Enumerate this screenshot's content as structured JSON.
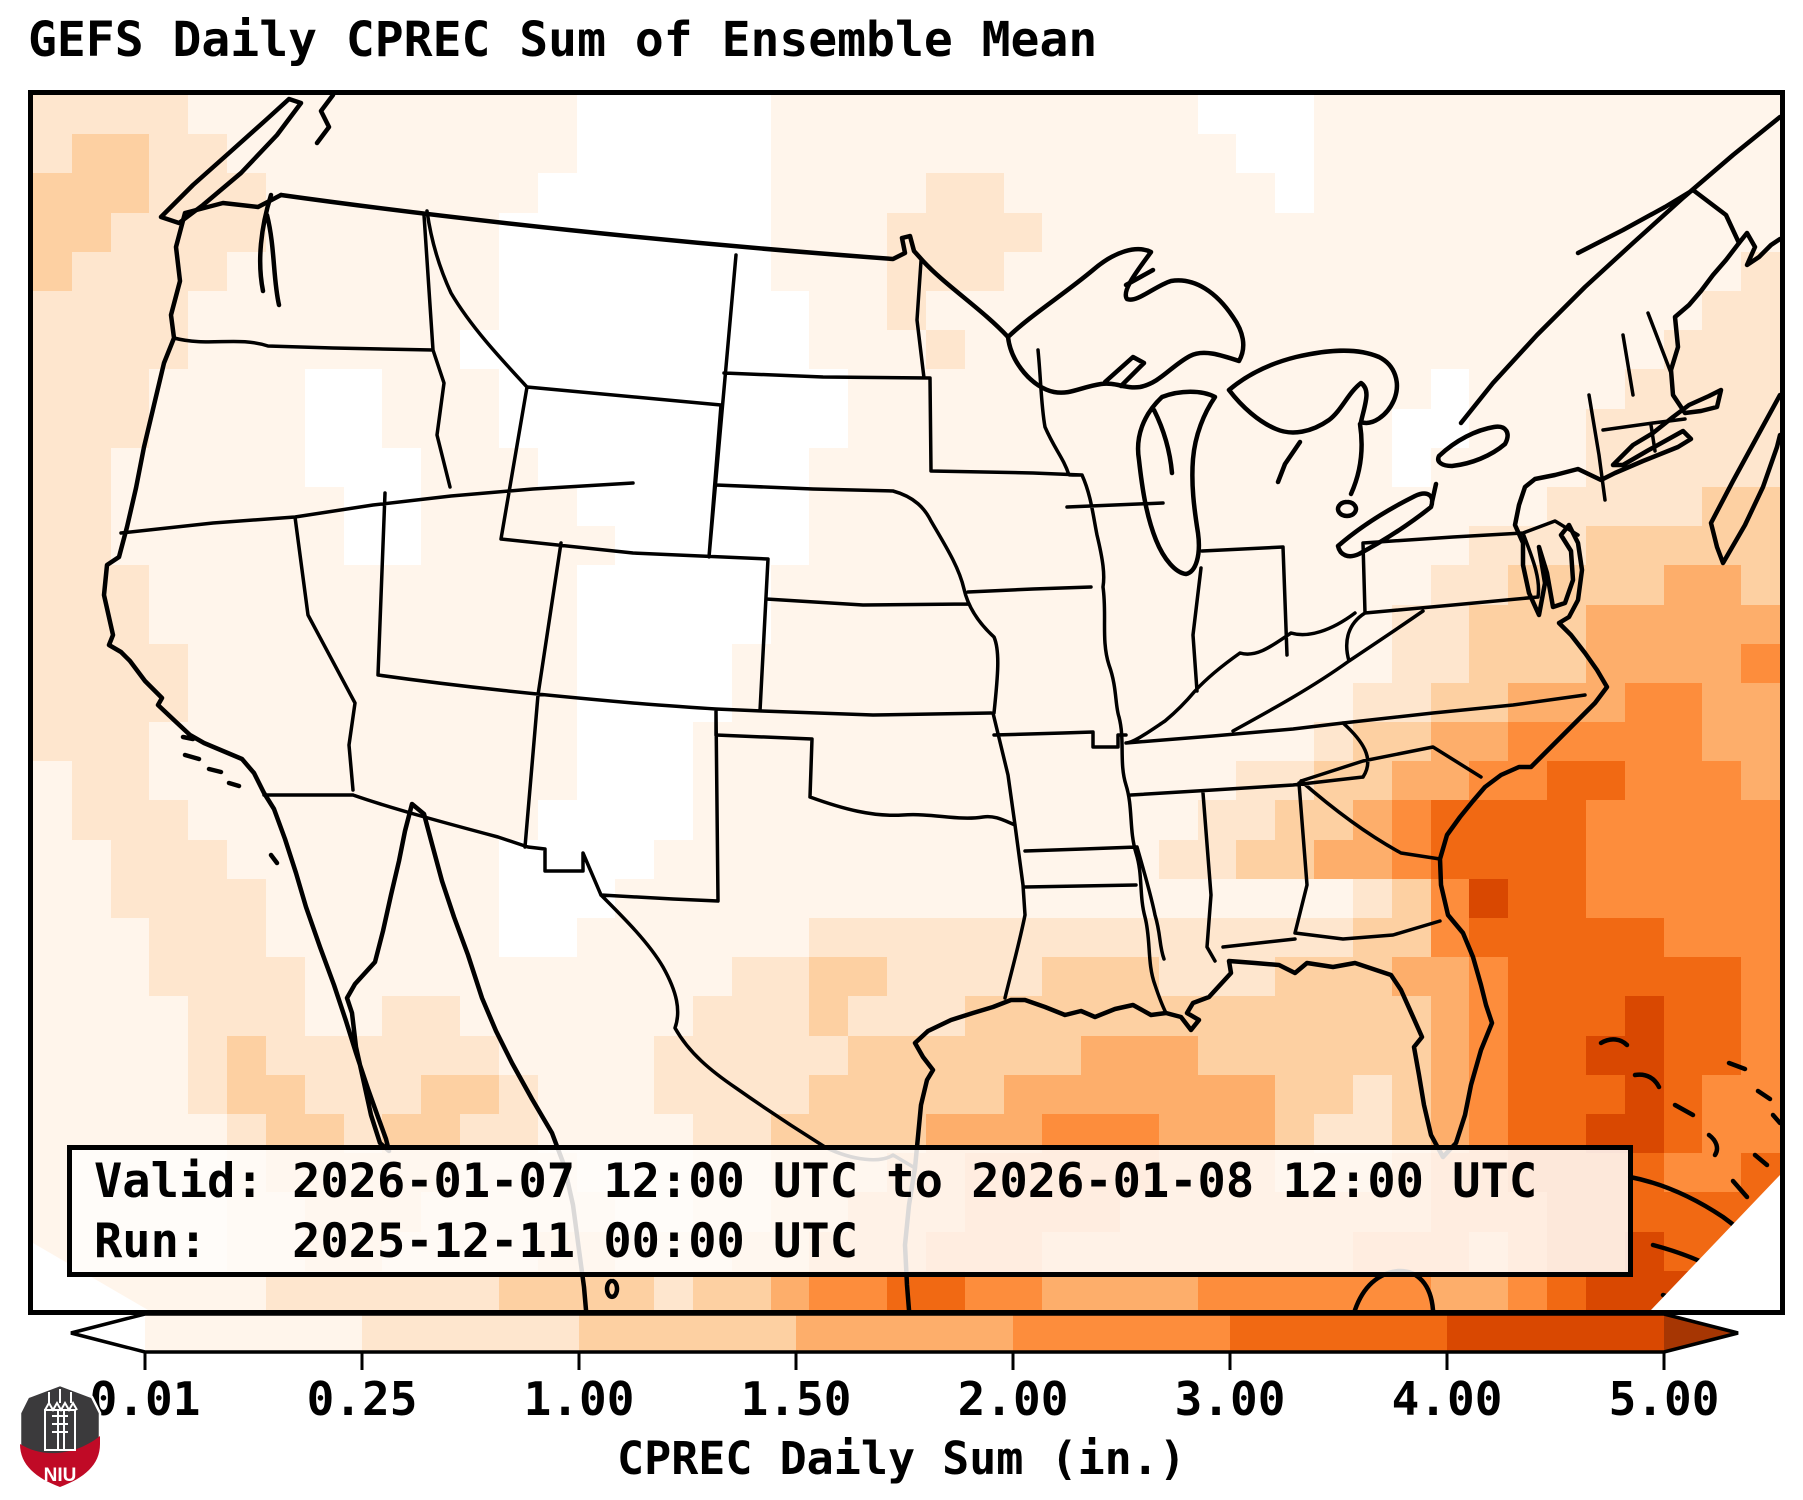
{
  "title": "GEFS Daily CPREC Sum of Ensemble Mean",
  "info_box": {
    "line1": "Valid: 2026-01-07 12:00 UTC to 2026-01-08 12:00 UTC",
    "line2": "Run:   2025-12-11 00:00 UTC",
    "valid_label": "Valid:",
    "valid_value": "2026-01-07 12:00 UTC to 2026-01-08 12:00 UTC",
    "run_label": "Run:",
    "run_value": "2025-12-11 00:00 UTC"
  },
  "colorbar": {
    "label": "CPREC Daily Sum (in.)",
    "tick_labels": [
      "0.01",
      "0.25",
      "1.00",
      "1.50",
      "2.00",
      "3.00",
      "4.00",
      "5.00"
    ],
    "boundaries": [
      0.01,
      0.25,
      1.0,
      1.5,
      2.0,
      3.0,
      4.0,
      5.0
    ],
    "segment_colors": [
      "#fff5eb",
      "#fee6ce",
      "#fdd0a2",
      "#fdae6b",
      "#fd8d3c",
      "#f16913",
      "#d94801"
    ],
    "under_color": "#ffffff",
    "over_color": "#a63603",
    "outline_color": "#000000"
  },
  "logo": {
    "text": "NIU",
    "shield_dark": "#3b3a3c",
    "shield_red": "#c00a26",
    "castle_color": "#ffffff"
  },
  "map": {
    "frame_color": "#000000",
    "coastline_color": "#000000",
    "background": "#ffffff",
    "grid": {
      "cols": 45,
      "rows": 31,
      "palette": {
        "0": "#ffffff",
        "1": "#fff5eb",
        "2": "#fee6ce",
        "3": "#fdd0a2",
        "4": "#fdae6b",
        "5": "#fd8d3c",
        "6": "#f16913",
        "7": "#d94801"
      },
      "rows_data": [
        "222211111111110000011111111111000111111111111",
        "233221111111110000011111111111100111111111111",
        "333222111111100000011112211111110111111111111",
        "332222111111000000011122221111111111111111111",
        "322221111111000000011122211111111111111111112",
        "222211111111000000001121111111111111111111122",
        "222211111110000000001112111111111111111111222",
        "222111100111000000000111111111111111011112222",
        "222111100111000000000111111111111110011122222",
        "221111100011100000001111111111111110111122222",
        "221111110011110000001111111111111111111222233",
        "221111110011111000001111111111111111122233333",
        "222111111111110000011111111111111111223333443",
        "222111111111110000011111111111111112233344444",
        "222211111111110000111111111111111112233344445",
        "222211111111110000111111111111111122334445544",
        "222111111111110001111111111111111233445555544",
        "122111111111110001111111111111122334455665554",
        "122211111111100001111111111111223345666655555",
        "112221111111000011111111111112233445666655555",
        "112222111111000111111111111111111123576655555",
        "111222111111001111112222222222222233566666555",
        "111222211111111111223322223332223334456666665",
        "111122211221111112223222333333333333456667665",
        "111123222222111122222333333444333333456677665",
        "111123322233211122223333344444443323456667655",
        "111112332332211112233334445554443223456677655",
        "111112333332221112233344555554443334556666556",
        "111112233322222112233444555544444444555666666",
        "111112233222233222334445554444444455545667666",
        "111111222222333323345566554444555555445677766"
      ]
    }
  }
}
